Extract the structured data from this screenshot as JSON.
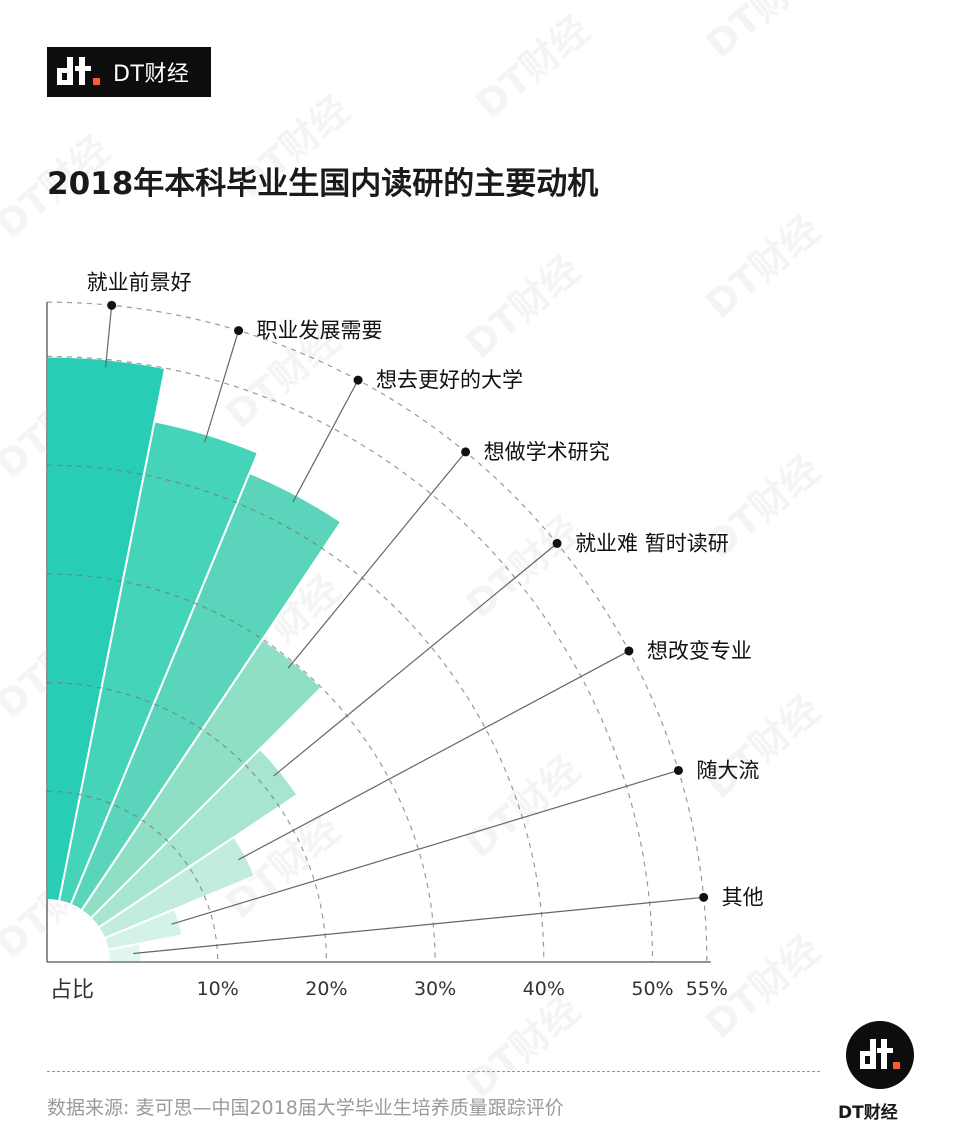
{
  "brand": {
    "name": "DT财经"
  },
  "title": "2018年本科毕业生国内读研的主要动机",
  "chart_data": {
    "type": "polar-bar",
    "title": "2018年本科毕业生国内读研的主要动机",
    "axis_label": "占比",
    "unit": "%",
    "r_ticks": [
      "10%",
      "20%",
      "30%",
      "40%",
      "50%",
      "55%"
    ],
    "r_tick_values": [
      10,
      20,
      30,
      40,
      50,
      55
    ],
    "rmax": 55,
    "categories": [
      "就业前景好",
      "职业发展需要",
      "想去更好的大学",
      "想做学术研究",
      "就业难 暂时读研",
      "想改变专业",
      "随大流",
      "其他"
    ],
    "values": [
      50,
      45,
      43,
      30,
      22,
      15,
      7,
      3
    ],
    "colors": [
      "#29cdb6",
      "#45d3b9",
      "#5ad5bb",
      "#8fdfc6",
      "#a8e5d1",
      "#c2ecde",
      "#d3f2e8",
      "#e1f6ef"
    ]
  },
  "footer": {
    "source": "数据来源: 麦可思—中国2018届大学毕业生培养质量跟踪评价",
    "logo_text": "DT财经"
  }
}
